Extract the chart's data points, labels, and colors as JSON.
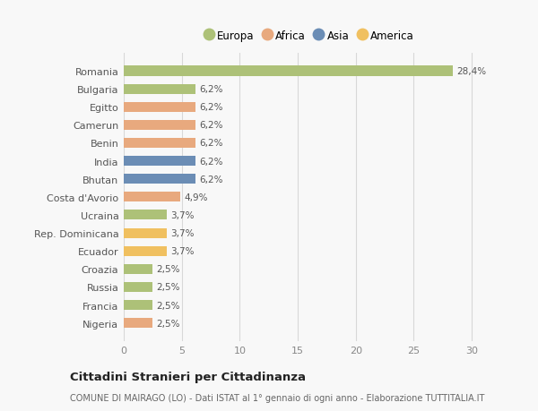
{
  "categories": [
    "Romania",
    "Bulgaria",
    "Egitto",
    "Camerun",
    "Benin",
    "India",
    "Bhutan",
    "Costa d'Avorio",
    "Ucraina",
    "Rep. Dominicana",
    "Ecuador",
    "Croazia",
    "Russia",
    "Francia",
    "Nigeria"
  ],
  "values": [
    28.4,
    6.2,
    6.2,
    6.2,
    6.2,
    6.2,
    6.2,
    4.9,
    3.7,
    3.7,
    3.7,
    2.5,
    2.5,
    2.5,
    2.5
  ],
  "labels": [
    "28,4%",
    "6,2%",
    "6,2%",
    "6,2%",
    "6,2%",
    "6,2%",
    "6,2%",
    "4,9%",
    "3,7%",
    "3,7%",
    "3,7%",
    "2,5%",
    "2,5%",
    "2,5%",
    "2,5%"
  ],
  "colors": [
    "#adc178",
    "#adc178",
    "#e8a97e",
    "#e8a97e",
    "#e8a97e",
    "#6b8db5",
    "#6b8db5",
    "#e8a97e",
    "#adc178",
    "#f0c060",
    "#f0c060",
    "#adc178",
    "#adc178",
    "#adc178",
    "#e8a97e"
  ],
  "legend_names": [
    "Europa",
    "Africa",
    "Asia",
    "America"
  ],
  "legend_colors": [
    "#adc178",
    "#e8a97e",
    "#6b8db5",
    "#f0c060"
  ],
  "title": "Cittadini Stranieri per Cittadinanza",
  "subtitle": "COMUNE DI MAIRAGO (LO) - Dati ISTAT al 1° gennaio di ogni anno - Elaborazione TUTTITALIA.IT",
  "xlim": [
    0,
    32
  ],
  "xticks": [
    0,
    5,
    10,
    15,
    20,
    25,
    30
  ],
  "background_color": "#f8f8f8",
  "grid_color": "#d8d8d8",
  "bar_height": 0.55
}
